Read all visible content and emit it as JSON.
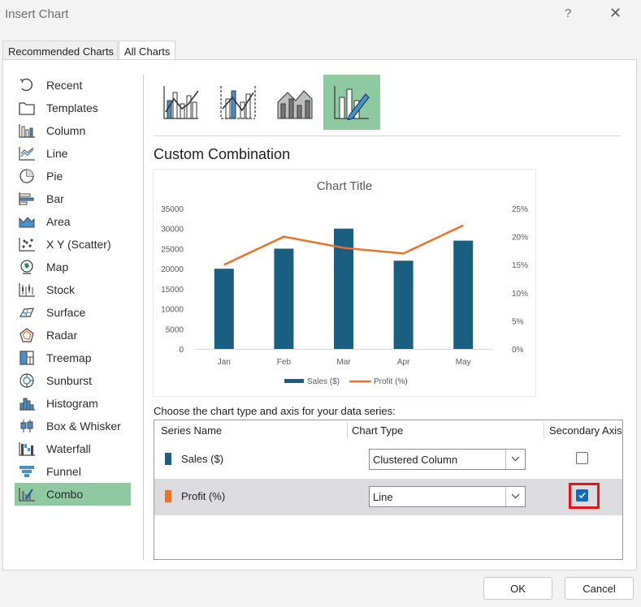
{
  "window": {
    "title": "Insert Chart",
    "help_glyph": "?",
    "close_glyph": "✕"
  },
  "tabs": [
    {
      "label": "Recommended Charts",
      "active": false
    },
    {
      "label": "All Charts",
      "active": true
    }
  ],
  "sidebar": {
    "selected": "Combo",
    "items": [
      {
        "label": "Recent",
        "icon": "recent-icon"
      },
      {
        "label": "Templates",
        "icon": "templates-icon"
      },
      {
        "label": "Column",
        "icon": "column-chart-icon"
      },
      {
        "label": "Line",
        "icon": "line-chart-icon"
      },
      {
        "label": "Pie",
        "icon": "pie-chart-icon"
      },
      {
        "label": "Bar",
        "icon": "bar-chart-icon"
      },
      {
        "label": "Area",
        "icon": "area-chart-icon"
      },
      {
        "label": "X Y (Scatter)",
        "icon": "scatter-chart-icon"
      },
      {
        "label": "Map",
        "icon": "map-chart-icon"
      },
      {
        "label": "Stock",
        "icon": "stock-chart-icon"
      },
      {
        "label": "Surface",
        "icon": "surface-chart-icon"
      },
      {
        "label": "Radar",
        "icon": "radar-chart-icon"
      },
      {
        "label": "Treemap",
        "icon": "treemap-chart-icon"
      },
      {
        "label": "Sunburst",
        "icon": "sunburst-chart-icon"
      },
      {
        "label": "Histogram",
        "icon": "histogram-chart-icon"
      },
      {
        "label": "Box & Whisker",
        "icon": "box-whisker-chart-icon"
      },
      {
        "label": "Waterfall",
        "icon": "waterfall-chart-icon"
      },
      {
        "label": "Funnel",
        "icon": "funnel-chart-icon"
      },
      {
        "label": "Combo",
        "icon": "combo-chart-icon"
      }
    ]
  },
  "combo_subtypes": [
    {
      "name": "clustered-column-line",
      "icon": "clustered-column-line-icon"
    },
    {
      "name": "clustered-column-line-secondary-axis",
      "icon": "clustered-column-line-secondary-icon"
    },
    {
      "name": "stacked-area-clustered-column",
      "icon": "stacked-area-column-icon"
    },
    {
      "name": "custom-combination",
      "icon": "custom-combination-icon",
      "selected": true
    }
  ],
  "section_title": "Custom Combination",
  "chart_data": {
    "type": "bar",
    "title": "Chart Title",
    "categories": [
      "Jan",
      "Feb",
      "Mar",
      "Apr",
      "May"
    ],
    "series": [
      {
        "name": "Sales ($)",
        "type": "bar",
        "axis": "primary",
        "color": "#1a5e80",
        "values": [
          20000,
          25000,
          30000,
          22000,
          27000
        ]
      },
      {
        "name": "Profit (%)",
        "type": "line",
        "axis": "secondary",
        "color": "#e8722e",
        "values": [
          15,
          20,
          18,
          17,
          22
        ]
      }
    ],
    "y_primary": {
      "min": 0,
      "max": 35000,
      "ticks": [
        "35000",
        "30000",
        "25000",
        "20000",
        "15000",
        "10000",
        "5000",
        "0"
      ]
    },
    "y_secondary": {
      "min": 0,
      "max": 25,
      "ticks": [
        "25%",
        "20%",
        "15%",
        "10%",
        "5%",
        "0%"
      ]
    },
    "grid": false,
    "legend": "bottom"
  },
  "series_config": {
    "prompt": "Choose the chart type and axis for your data series:",
    "headers": {
      "series_name": "Series Name",
      "chart_type": "Chart Type",
      "secondary_axis": "Secondary Axis"
    },
    "rows": [
      {
        "name": "Sales ($)",
        "color": "#1a5e80",
        "chart_type": "Clustered Column",
        "secondary_axis": false
      },
      {
        "name": "Profit (%)",
        "color": "#e8722e",
        "chart_type": "Line",
        "secondary_axis": true
      }
    ]
  },
  "buttons": {
    "ok": "OK",
    "cancel": "Cancel"
  }
}
